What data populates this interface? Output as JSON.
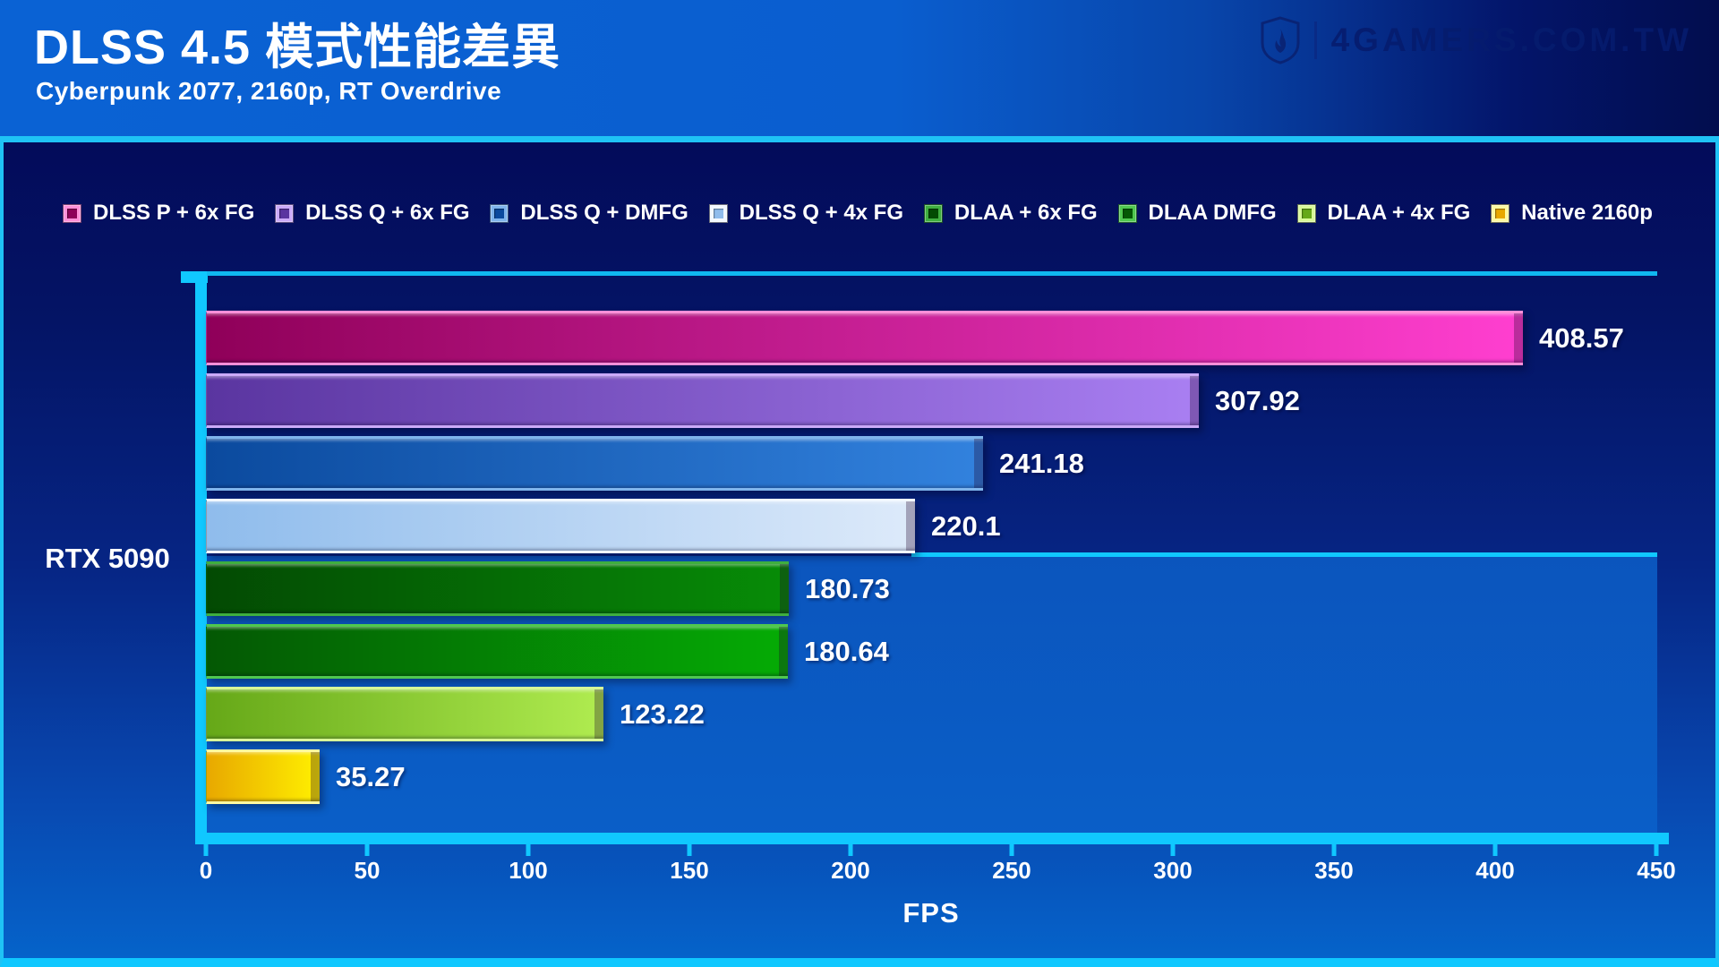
{
  "header": {
    "title": "DLSS 4.5 模式性能差異",
    "subtitle": "Cyberpunk 2077, 2160p, RT Overdrive",
    "brand": "4GAMERS.COM.TW"
  },
  "chart_data": {
    "type": "bar",
    "orientation": "horizontal",
    "category": "RTX 5090",
    "xlabel": "FPS",
    "xlim": [
      0,
      450
    ],
    "xticks": [
      0,
      50,
      100,
      150,
      200,
      250,
      300,
      350,
      400,
      450
    ],
    "legend_position": "top",
    "grid": false,
    "accent_color": "#10c8ff",
    "series": [
      {
        "name": "DLSS P + 6x FG",
        "value": 408.57,
        "label": "408.57",
        "c1": "#8f0059",
        "c2": "#ff3fd0",
        "edge": "#ff8fd8"
      },
      {
        "name": "DLSS Q + 6x FG",
        "value": 307.92,
        "label": "307.92",
        "c1": "#5a35a0",
        "c2": "#a97ff2",
        "edge": "#cbaaf8"
      },
      {
        "name": "DLSS Q + DMFG",
        "value": 241.18,
        "label": "241.18",
        "c1": "#0b4a9e",
        "c2": "#3282de",
        "edge": "#7fb4ec"
      },
      {
        "name": "DLSS Q + 4x FG",
        "value": 220.1,
        "label": "220.1",
        "c1": "#8fbcec",
        "c2": "#ddeafa",
        "edge": "#f2f8ff"
      },
      {
        "name": "DLAA + 6x FG",
        "value": 180.73,
        "label": "180.73",
        "c1": "#034a03",
        "c2": "#078c07",
        "edge": "#3fae3f"
      },
      {
        "name": "DLAA DMFG",
        "value": 180.64,
        "label": "180.64",
        "c1": "#045804",
        "c2": "#05ac05",
        "edge": "#4fc84f"
      },
      {
        "name": "DLAA + 4x FG",
        "value": 123.22,
        "label": "123.22",
        "c1": "#66a818",
        "c2": "#b0ec50",
        "edge": "#d8f898"
      },
      {
        "name": "Native 2160p",
        "value": 35.27,
        "label": "35.27",
        "c1": "#e8a800",
        "c2": "#fff000",
        "edge": "#fff9a0"
      }
    ]
  }
}
